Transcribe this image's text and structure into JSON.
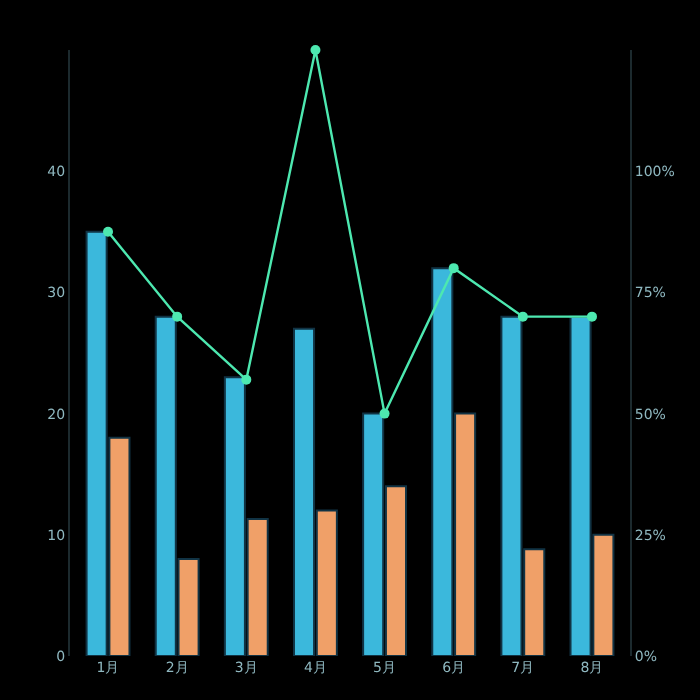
{
  "chart_data": {
    "type": "bar",
    "categories": [
      "1月",
      "2月",
      "3月",
      "4月",
      "5月",
      "6月",
      "7月",
      "8月"
    ],
    "series": [
      {
        "color": "#3bb8dc",
        "values": [
          35,
          28,
          23,
          27,
          20,
          32,
          28,
          28
        ]
      },
      {
        "color": "#f0a068",
        "values": [
          18,
          8,
          11.3,
          12,
          14,
          20,
          8.8,
          10
        ]
      },
      {
        "type": "line",
        "axis": "y2",
        "color": "#4de8b0",
        "values": [
          87.5,
          70,
          57,
          125,
          50,
          80,
          70,
          70
        ]
      }
    ],
    "ylim": [
      0,
      50
    ],
    "yticks": [
      0,
      10,
      20,
      30,
      40
    ],
    "y2lim": [
      0,
      125
    ],
    "y2ticks": [
      {
        "value": 0,
        "label": "0%"
      },
      {
        "value": 25,
        "label": "25%"
      },
      {
        "value": 50,
        "label": "50%"
      },
      {
        "value": 75,
        "label": "75%"
      },
      {
        "value": 100,
        "label": "100%"
      }
    ],
    "grid": false,
    "legend": false,
    "marker": "circle"
  }
}
